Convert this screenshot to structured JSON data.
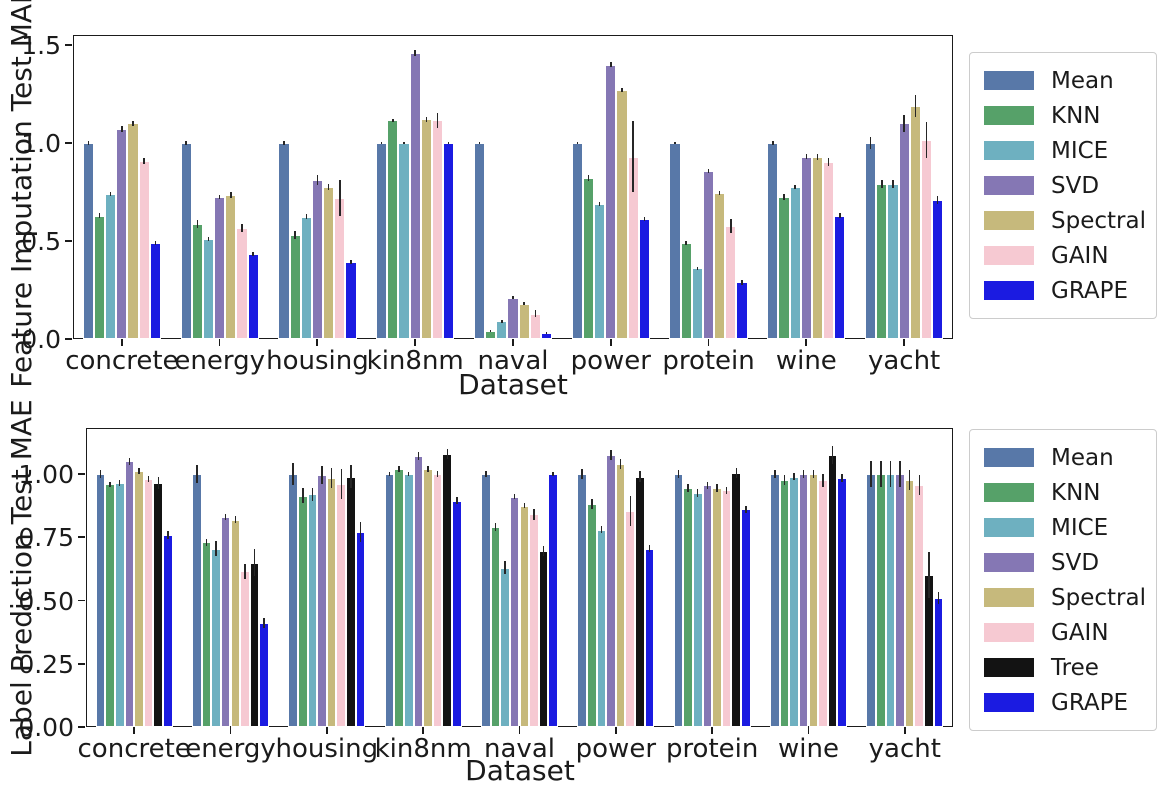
{
  "figure": {
    "background": "#ffffff",
    "text_color": "#1b1b1b",
    "axis_color": "#1b1b1b",
    "errorbar_color": "#262626"
  },
  "palette": {
    "Mean": "#5878a8",
    "KNN": "#56a169",
    "MICE": "#6eb0c0",
    "SVD": "#8577b4",
    "Spectral": "#c6b97c",
    "GAIN": "#f6c9d2",
    "Tree": "#131313",
    "GRAPE": "#1b1be1"
  },
  "chart_data": [
    {
      "type": "bar",
      "panel": "top",
      "title": "",
      "ylabel": "Feature Imputation Test MAE",
      "xlabel": "Dataset",
      "grid": false,
      "legend_position": "right-outside",
      "categories": [
        "concrete",
        "energy",
        "housing",
        "kin8nm",
        "naval",
        "power",
        "protein",
        "wine",
        "yacht"
      ],
      "ylim": [
        0,
        1.55
      ],
      "yticks": [
        0,
        0.5,
        1.0,
        1.5
      ],
      "ytick_labels": [
        "0.0",
        "0.5",
        "1.0",
        "1.5"
      ],
      "series": [
        {
          "name": "Mean",
          "color": "#5878a8",
          "values": [
            1.0,
            1.0,
            1.0,
            1.0,
            1.0,
            1.0,
            1.0,
            1.0,
            1.0
          ],
          "errors": [
            0.012,
            0.012,
            0.008,
            0.006,
            0.005,
            0.006,
            0.005,
            0.008,
            0.03
          ]
        },
        {
          "name": "KNN",
          "color": "#56a169",
          "values": [
            0.63,
            0.585,
            0.53,
            1.115,
            0.04,
            0.82,
            0.49,
            0.725,
            0.79
          ],
          "errors": [
            0.015,
            0.02,
            0.02,
            0.006,
            0.005,
            0.015,
            0.008,
            0.015,
            0.02
          ]
        },
        {
          "name": "MICE",
          "color": "#6eb0c0",
          "values": [
            0.74,
            0.51,
            0.625,
            1.0,
            0.09,
            0.69,
            0.36,
            0.775,
            0.79
          ],
          "errors": [
            0.01,
            0.012,
            0.015,
            0.006,
            0.008,
            0.01,
            0.008,
            0.012,
            0.02
          ]
        },
        {
          "name": "SVD",
          "color": "#8577b4",
          "values": [
            1.07,
            0.725,
            0.81,
            1.46,
            0.21,
            1.4,
            0.855,
            0.93,
            1.1
          ],
          "errors": [
            0.015,
            0.012,
            0.025,
            0.015,
            0.008,
            0.012,
            0.01,
            0.012,
            0.045
          ]
        },
        {
          "name": "Spectral",
          "color": "#c6b97c",
          "values": [
            1.1,
            0.735,
            0.775,
            1.12,
            0.18,
            1.27,
            0.745,
            0.93,
            1.19
          ],
          "errors": [
            0.012,
            0.015,
            0.015,
            0.012,
            0.008,
            0.012,
            0.008,
            0.015,
            0.055
          ]
        },
        {
          "name": "GAIN",
          "color": "#f6c9d2",
          "values": [
            0.91,
            0.565,
            0.72,
            1.115,
            0.13,
            0.93,
            0.575,
            0.905,
            1.015
          ],
          "errors": [
            0.015,
            0.02,
            0.09,
            0.04,
            0.02,
            0.18,
            0.035,
            0.02,
            0.09
          ]
        },
        {
          "name": "GRAPE",
          "color": "#1b1be1",
          "values": [
            0.49,
            0.435,
            0.395,
            1.0,
            0.03,
            0.61,
            0.29,
            0.63,
            0.71
          ],
          "errors": [
            0.008,
            0.01,
            0.01,
            0.005,
            0.004,
            0.01,
            0.012,
            0.012,
            0.02
          ]
        }
      ]
    },
    {
      "type": "bar",
      "panel": "bottom",
      "title": "",
      "ylabel": "Label Prediction Test MAE",
      "xlabel": "Dataset",
      "grid": false,
      "legend_position": "right-outside",
      "categories": [
        "concrete",
        "energy",
        "housing",
        "kin8nm",
        "naval",
        "power",
        "protein",
        "wine",
        "yacht"
      ],
      "ylim": [
        0,
        1.18
      ],
      "yticks": [
        0,
        0.25,
        0.5,
        0.75,
        1.0
      ],
      "ytick_labels": [
        "0.00",
        "0.25",
        "0.50",
        "0.75",
        "1.00"
      ],
      "series": [
        {
          "name": "Mean",
          "color": "#5878a8",
          "values": [
            1.0,
            1.0,
            1.0,
            1.0,
            1.0,
            1.0,
            1.0,
            1.0,
            1.0
          ],
          "errors": [
            0.015,
            0.035,
            0.045,
            0.008,
            0.01,
            0.02,
            0.015,
            0.015,
            0.05
          ]
        },
        {
          "name": "KNN",
          "color": "#56a169",
          "values": [
            0.96,
            0.73,
            0.915,
            1.02,
            0.79,
            0.88,
            0.945,
            0.975,
            1.0
          ],
          "errors": [
            0.01,
            0.015,
            0.03,
            0.012,
            0.015,
            0.02,
            0.015,
            0.02,
            0.05
          ]
        },
        {
          "name": "MICE",
          "color": "#6eb0c0",
          "values": [
            0.965,
            0.705,
            0.92,
            1.0,
            0.63,
            0.78,
            0.925,
            0.99,
            1.0
          ],
          "errors": [
            0.012,
            0.03,
            0.025,
            0.008,
            0.025,
            0.015,
            0.015,
            0.015,
            0.05
          ]
        },
        {
          "name": "SVD",
          "color": "#8577b4",
          "values": [
            1.05,
            0.83,
            0.995,
            1.07,
            0.91,
            1.075,
            0.955,
            1.0,
            1.0
          ],
          "errors": [
            0.015,
            0.012,
            0.035,
            0.015,
            0.01,
            0.02,
            0.015,
            0.015,
            0.05
          ]
        },
        {
          "name": "Spectral",
          "color": "#c6b97c",
          "values": [
            1.01,
            0.82,
            0.985,
            1.02,
            0.875,
            1.04,
            0.945,
            1.0,
            0.975
          ],
          "errors": [
            0.012,
            0.015,
            0.04,
            0.012,
            0.01,
            0.02,
            0.015,
            0.015,
            0.04
          ]
        },
        {
          "name": "GAIN",
          "color": "#f6c9d2",
          "values": [
            0.98,
            0.615,
            0.96,
            1.0,
            0.84,
            0.855,
            0.935,
            0.975,
            0.955
          ],
          "errors": [
            0.012,
            0.03,
            0.06,
            0.012,
            0.02,
            0.06,
            0.015,
            0.025,
            0.04
          ]
        },
        {
          "name": "Tree",
          "color": "#131313",
          "values": [
            0.965,
            0.65,
            0.99,
            1.08,
            0.695,
            0.99,
            1.005,
            1.075,
            0.6
          ],
          "errors": [
            0.025,
            0.055,
            0.045,
            0.02,
            0.02,
            0.02,
            0.02,
            0.035,
            0.09
          ]
        },
        {
          "name": "GRAPE",
          "color": "#1b1be1",
          "values": [
            0.76,
            0.41,
            0.77,
            0.895,
            1.0,
            0.705,
            0.86,
            0.985,
            0.51
          ],
          "errors": [
            0.015,
            0.02,
            0.04,
            0.015,
            0.008,
            0.015,
            0.015,
            0.015,
            0.025
          ]
        }
      ]
    }
  ]
}
